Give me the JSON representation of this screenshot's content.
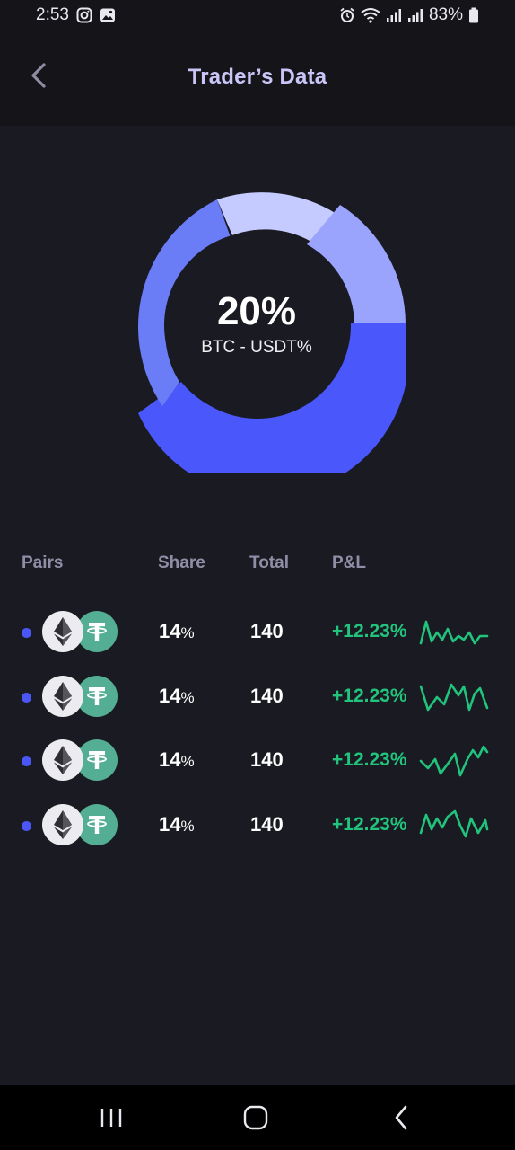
{
  "status": {
    "time": "2:53",
    "battery": "83%"
  },
  "header": {
    "title": "Trader’s Data"
  },
  "donut": {
    "value": "20%",
    "label": "BTC - USDT%",
    "colors": [
      "#4a57fb",
      "#6a7cf6",
      "#c6cbff",
      "#9aa4fd"
    ]
  },
  "table": {
    "columns": {
      "pairs": "Pairs",
      "share": "Share",
      "total": "Total",
      "pnl": "P&L"
    },
    "rows": [
      {
        "share": "14",
        "share_unit": "%",
        "total": "140",
        "pnl": "+12.23%"
      },
      {
        "share": "14",
        "share_unit": "%",
        "total": "140",
        "pnl": "+12.23%"
      },
      {
        "share": "14",
        "share_unit": "%",
        "total": "140",
        "pnl": "+12.23%"
      },
      {
        "share": "14",
        "share_unit": "%",
        "total": "140",
        "pnl": "+12.23%"
      }
    ]
  },
  "icons": {
    "pair_base": "ethereum-icon",
    "pair_quote": "tether-icon",
    "back": "back-chevron-icon"
  },
  "theme": {
    "background": "#1a1a22",
    "title_color": "#c9c6f7",
    "pnl_color": "#21c47c",
    "dot_color": "#4a56f5"
  }
}
